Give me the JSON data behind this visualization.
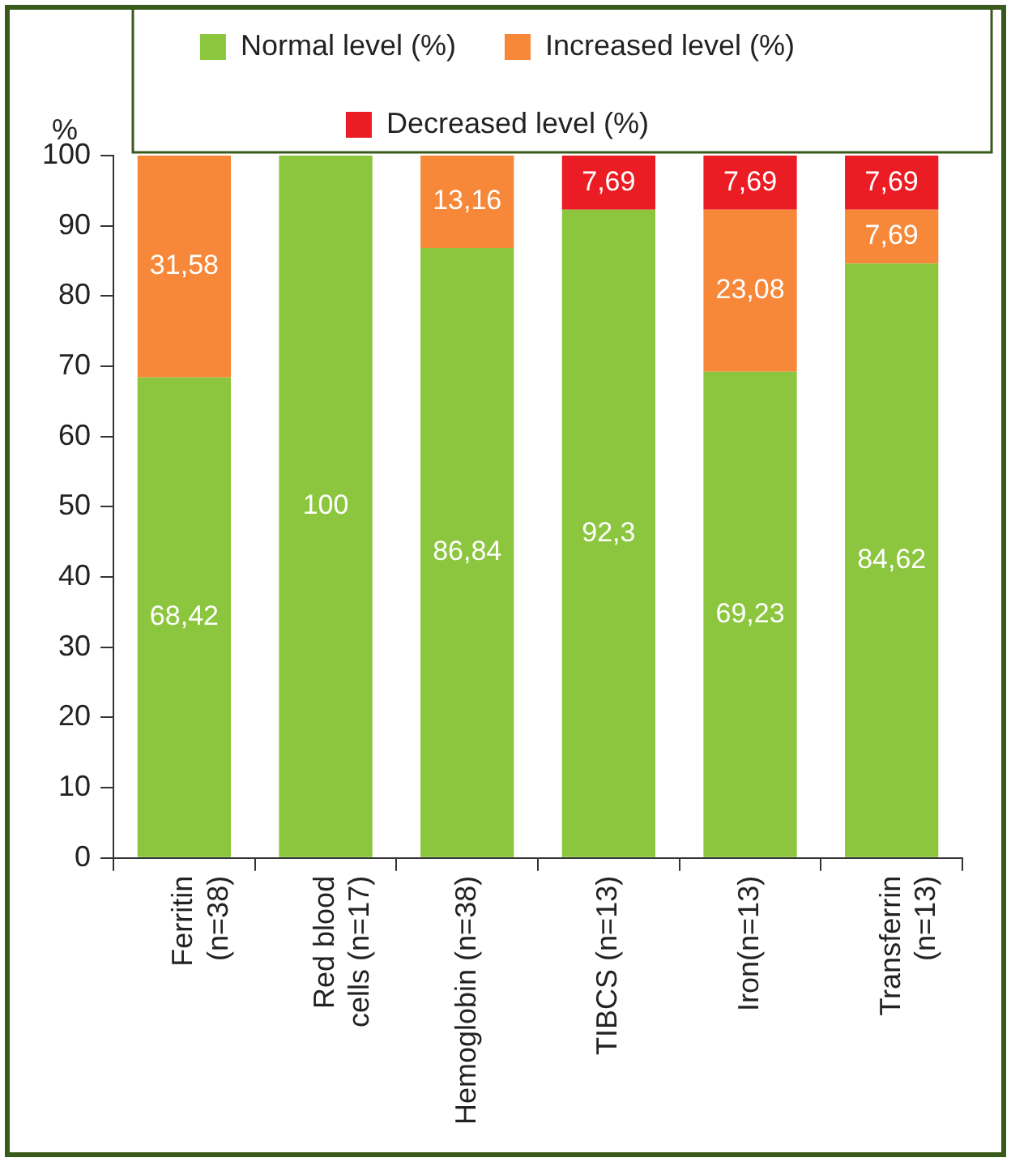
{
  "chart_data": {
    "type": "bar",
    "stacked": true,
    "ylabel": "%",
    "legend": "top",
    "grid": false,
    "data_labels": false,
    "categories": [
      "Ferritin\n(n=38)",
      "Red blood\ncells (n=17)",
      "Hemoglobin (n=38)",
      "TIBCS (n=13)",
      "Iron(n=13)",
      "Transferrin\n(n=13)"
    ],
    "ylim": [
      0,
      100
    ],
    "yticks": [
      0,
      10,
      20,
      30,
      40,
      50,
      60,
      70,
      80,
      90,
      100
    ],
    "series": [
      {
        "name": "Normal level (%)",
        "color": "#8cc63f",
        "values": [
          68.42,
          100,
          86.84,
          92.3,
          69.23,
          84.62
        ],
        "value_labels": [
          "68,42",
          "100",
          "86,84",
          "92,3",
          "69,23",
          "84,62"
        ]
      },
      {
        "name": "Increased level (%)",
        "color": "#f7883a",
        "values": [
          31.58,
          null,
          13.16,
          null,
          23.08,
          7.69
        ],
        "value_labels": [
          "31,58",
          null,
          "13,16",
          null,
          "23,08",
          "7,69"
        ]
      },
      {
        "name": "Decreased level (%)",
        "color": "#ec1c24",
        "values": [
          null,
          null,
          null,
          7.69,
          7.69,
          7.69
        ],
        "value_labels": [
          null,
          null,
          null,
          "7,69",
          "7,69",
          "7,69"
        ]
      }
    ]
  }
}
